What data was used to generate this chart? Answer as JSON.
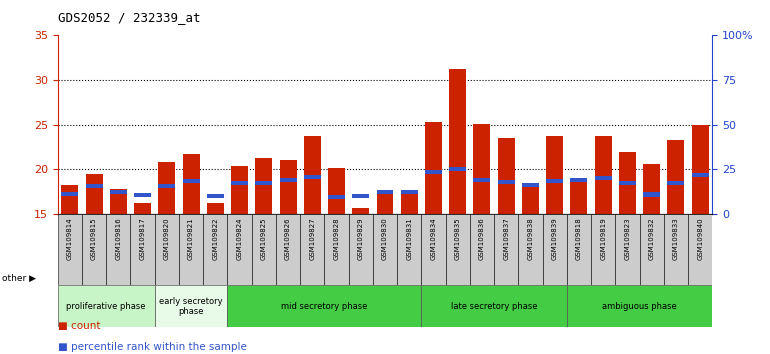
{
  "title": "GDS2052 / 232339_at",
  "samples": [
    "GSM109814",
    "GSM109815",
    "GSM109816",
    "GSM109817",
    "GSM109820",
    "GSM109821",
    "GSM109822",
    "GSM109824",
    "GSM109825",
    "GSM109826",
    "GSM109827",
    "GSM109828",
    "GSM109829",
    "GSM109830",
    "GSM109831",
    "GSM109834",
    "GSM109835",
    "GSM109836",
    "GSM109837",
    "GSM109838",
    "GSM109839",
    "GSM109818",
    "GSM109819",
    "GSM109823",
    "GSM109832",
    "GSM109833",
    "GSM109840"
  ],
  "count_values": [
    18.3,
    19.5,
    17.8,
    16.2,
    20.8,
    21.7,
    16.3,
    20.4,
    21.3,
    21.1,
    23.8,
    20.2,
    15.7,
    17.5,
    17.5,
    25.3,
    31.2,
    25.1,
    23.5,
    18.5,
    23.8,
    19.1,
    23.8,
    22.0,
    20.6,
    23.3,
    25.0
  ],
  "percentile_values": [
    17.3,
    18.1,
    17.5,
    17.1,
    18.2,
    18.7,
    17.0,
    18.5,
    18.5,
    18.8,
    19.2,
    16.9,
    17.0,
    17.5,
    17.5,
    19.7,
    20.1,
    18.8,
    18.6,
    18.3,
    18.7,
    18.8,
    19.0,
    18.5,
    17.2,
    18.5,
    19.4
  ],
  "phases": [
    {
      "label": "proliferative phase",
      "start": 0,
      "end": 4,
      "color": "#c8f5c8"
    },
    {
      "label": "early secretory\nphase",
      "start": 4,
      "end": 7,
      "color": "#e8fae8"
    },
    {
      "label": "mid secretory phase",
      "start": 7,
      "end": 15,
      "color": "#44cc44"
    },
    {
      "label": "late secretory phase",
      "start": 15,
      "end": 21,
      "color": "#44cc44"
    },
    {
      "label": "ambiguous phase",
      "start": 21,
      "end": 27,
      "color": "#44cc44"
    }
  ],
  "ylim_left": [
    15,
    35
  ],
  "ylim_right": [
    0,
    100
  ],
  "yticks_left": [
    15,
    20,
    25,
    30,
    35
  ],
  "yticks_right": [
    0,
    25,
    50,
    75,
    100
  ],
  "ytick_labels_right": [
    "0",
    "25",
    "50",
    "75",
    "100%"
  ],
  "bar_color": "#CC2200",
  "percentile_color": "#3355CC",
  "plot_bg_color": "#ffffff",
  "tick_area_bg": "#cccccc",
  "left_axis_color": "#CC2200",
  "right_axis_color": "#2244CC",
  "grid_color": "black",
  "grid_style": "dotted",
  "grid_linewidth": 0.8
}
